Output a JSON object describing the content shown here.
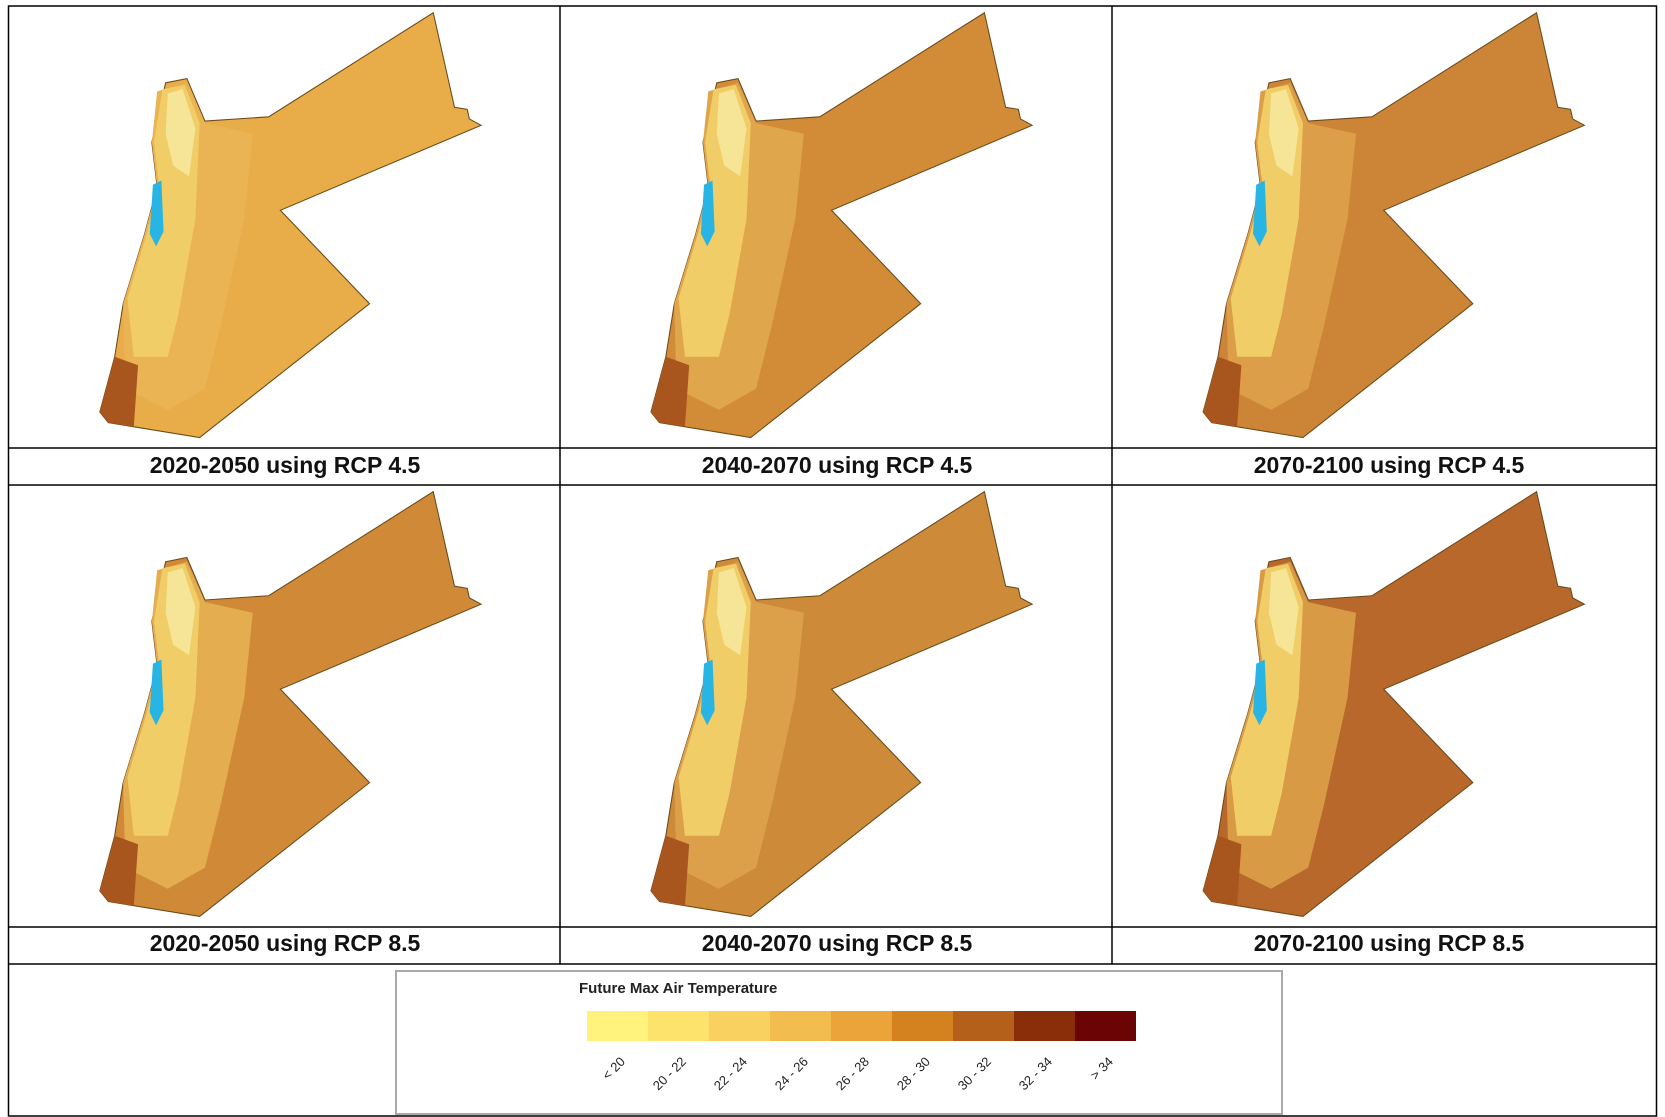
{
  "panels": [
    {
      "caption": "2020-2050 using RCP 4.5"
    },
    {
      "caption": "2040-2070 using RCP 4.5"
    },
    {
      "caption": "2070-2100 using RCP 4.5"
    },
    {
      "caption": "2020-2050 using RCP 8.5"
    },
    {
      "caption": "2040-2070 using RCP 8.5"
    },
    {
      "caption": "2070-2100 using RCP 8.5"
    }
  ],
  "legend": {
    "title": "Future Max Air Temperature",
    "classes": [
      {
        "label": "< 20",
        "color": "#fff37d"
      },
      {
        "label": "20 - 22",
        "color": "#fde26b"
      },
      {
        "label": "22 - 24",
        "color": "#f8d160"
      },
      {
        "label": "24 - 26",
        "color": "#f2bc4f"
      },
      {
        "label": "26 - 28",
        "color": "#eaa43a"
      },
      {
        "label": "28 - 30",
        "color": "#d4821f"
      },
      {
        "label": "30 - 32",
        "color": "#b5601a"
      },
      {
        "label": "32 - 34",
        "color": "#8a2e0a"
      },
      {
        "label": "> 34",
        "color": "#6b0505"
      }
    ]
  }
}
